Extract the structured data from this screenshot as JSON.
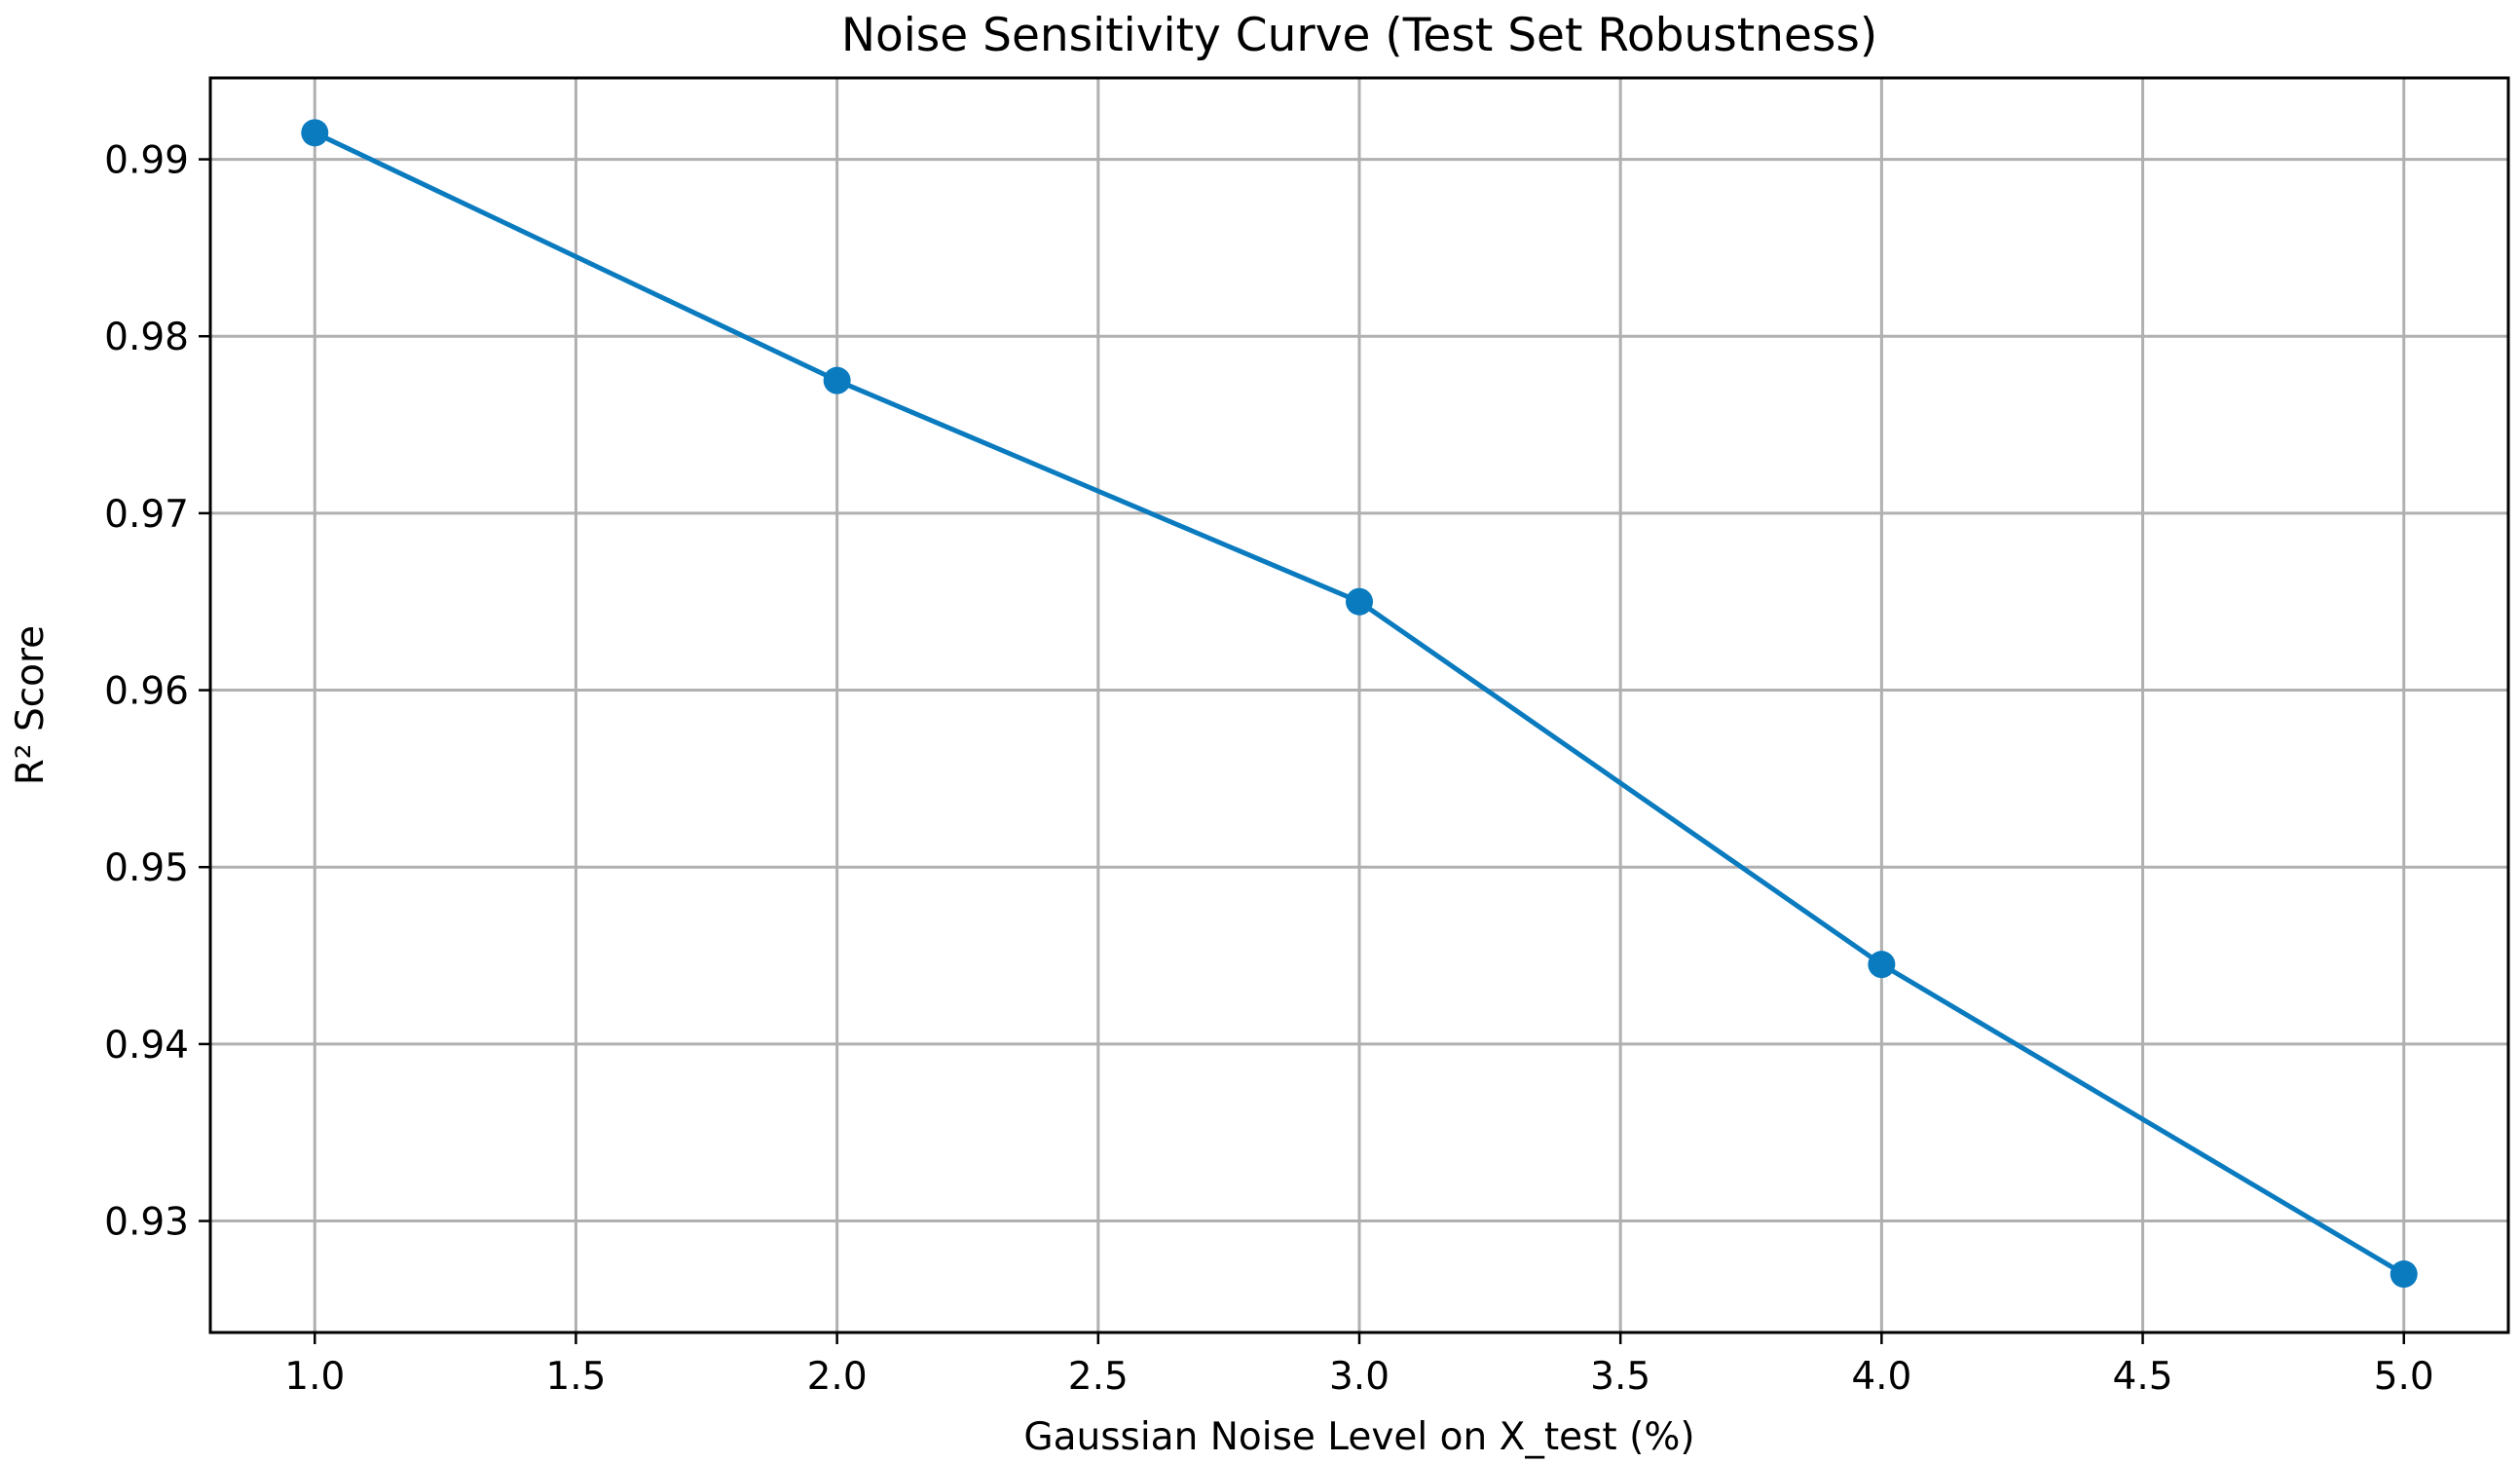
{
  "chart_data": {
    "type": "line",
    "title": "Noise Sensitivity Curve (Test Set Robustness)",
    "xlabel": "Gaussian Noise Level on X_test (%)",
    "ylabel": "R² Score",
    "xlim": [
      0.8,
      5.2
    ],
    "ylim": [
      0.9237,
      0.9946
    ],
    "x_ticks": [
      1.0,
      1.5,
      2.0,
      2.5,
      3.0,
      3.5,
      4.0,
      4.5,
      5.0
    ],
    "x_tick_labels": [
      "1.0",
      "1.5",
      "2.0",
      "2.5",
      "3.0",
      "3.5",
      "4.0",
      "4.5",
      "5.0"
    ],
    "y_ticks": [
      0.93,
      0.94,
      0.95,
      0.96,
      0.97,
      0.98,
      0.99
    ],
    "y_tick_labels": [
      "0.93",
      "0.94",
      "0.95",
      "0.96",
      "0.97",
      "0.98",
      "0.99"
    ],
    "grid": true,
    "series": [
      {
        "color": "#0a7bbf",
        "marker": "circle",
        "x": [
          1.0,
          2.0,
          3.0,
          4.0,
          5.0
        ],
        "values": [
          0.9915,
          0.9775,
          0.965,
          0.9445,
          0.927
        ]
      }
    ]
  }
}
